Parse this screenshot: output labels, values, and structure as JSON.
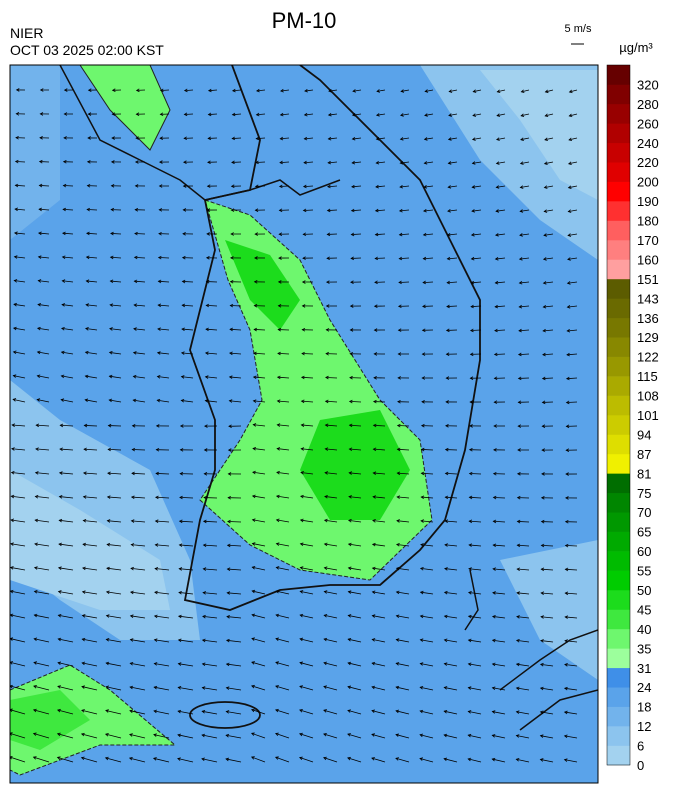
{
  "header": {
    "title": "PM-10",
    "agency": "NIER",
    "timestamp": "OCT 03 2025 02:00 KST",
    "wind_scale": "5 m/s"
  },
  "colorbar": {
    "unit": "µg/m³",
    "labels": [
      0,
      6,
      12,
      18,
      24,
      31,
      35,
      40,
      45,
      50,
      55,
      60,
      65,
      70,
      75,
      81,
      87,
      94,
      101,
      108,
      115,
      122,
      129,
      136,
      143,
      151,
      160,
      170,
      180,
      190,
      200,
      220,
      240,
      260,
      280,
      320
    ],
    "colors": [
      "#a3d2ef",
      "#8cc4ee",
      "#72b3ec",
      "#5aa3ea",
      "#3f8fe8",
      "#9cff9c",
      "#6ef76e",
      "#3fe83f",
      "#1cdc1c",
      "#00cc00",
      "#00bb00",
      "#00aa00",
      "#009800",
      "#008600",
      "#006e00",
      "#f0f000",
      "#dede00",
      "#cccc00",
      "#bcbc00",
      "#aaaa00",
      "#989800",
      "#888800",
      "#787800",
      "#6a6a00",
      "#5c5c00",
      "#ff9f9f",
      "#ff7f7f",
      "#ff5f5f",
      "#ff3030",
      "#ff0000",
      "#e00000",
      "#c80000",
      "#b00000",
      "#980000",
      "#800000",
      "#660000"
    ]
  }
}
